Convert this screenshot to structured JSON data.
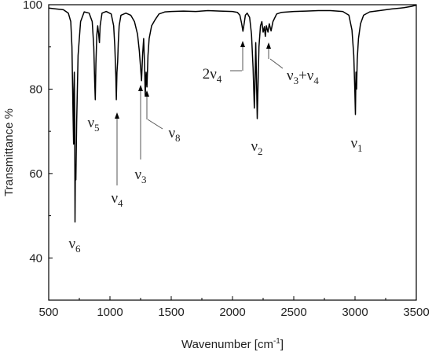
{
  "chart_data": {
    "type": "line",
    "title": "",
    "xlabel": "Wavenumber [cm",
    "xlabel_sup": "-1",
    "xlabel_end": "]",
    "ylabel": "Transmittance %",
    "xlim": [
      500,
      3500
    ],
    "ylim": [
      30,
      100
    ],
    "x_ticks": [
      500,
      1000,
      1500,
      2000,
      2500,
      3000,
      3500
    ],
    "y_ticks": [
      40,
      60,
      80,
      100
    ],
    "grid": false,
    "legend": "none",
    "line_color": "#000000",
    "series": [
      {
        "points": [
          [
            500,
            99.2
          ],
          [
            560,
            99.0
          ],
          [
            620,
            98.8
          ],
          [
            660,
            98.0
          ],
          [
            680,
            96.0
          ],
          [
            690,
            90.0
          ],
          [
            698,
            75.0
          ],
          [
            703,
            67.0
          ],
          [
            706,
            80.0
          ],
          [
            709,
            84.0
          ],
          [
            712,
            74.0
          ],
          [
            715,
            48.5
          ],
          [
            718,
            62.0
          ],
          [
            722,
            58.5
          ],
          [
            728,
            72.0
          ],
          [
            740,
            88.0
          ],
          [
            760,
            96.0
          ],
          [
            790,
            98.3
          ],
          [
            830,
            98.0
          ],
          [
            855,
            96.0
          ],
          [
            868,
            90.0
          ],
          [
            875,
            82.0
          ],
          [
            880,
            77.5
          ],
          [
            885,
            86.0
          ],
          [
            893,
            93.0
          ],
          [
            900,
            95.0
          ],
          [
            908,
            93.0
          ],
          [
            914,
            91.0
          ],
          [
            920,
            95.0
          ],
          [
            935,
            98.0
          ],
          [
            970,
            98.4
          ],
          [
            1010,
            97.8
          ],
          [
            1030,
            95.0
          ],
          [
            1040,
            90.0
          ],
          [
            1048,
            83.0
          ],
          [
            1052,
            77.5
          ],
          [
            1057,
            84.0
          ],
          [
            1063,
            86.5
          ],
          [
            1068,
            91.0
          ],
          [
            1075,
            95.0
          ],
          [
            1090,
            97.5
          ],
          [
            1130,
            98.0
          ],
          [
            1170,
            97.5
          ],
          [
            1200,
            96.0
          ],
          [
            1225,
            93.0
          ],
          [
            1240,
            89.0
          ],
          [
            1250,
            85.0
          ],
          [
            1258,
            82.0
          ],
          [
            1266,
            88.0
          ],
          [
            1275,
            92.0
          ],
          [
            1282,
            86.0
          ],
          [
            1288,
            78.5
          ],
          [
            1295,
            84.0
          ],
          [
            1302,
            80.5
          ],
          [
            1310,
            88.0
          ],
          [
            1320,
            92.0
          ],
          [
            1340,
            95.0
          ],
          [
            1370,
            96.5
          ],
          [
            1400,
            97.8
          ],
          [
            1450,
            98.3
          ],
          [
            1500,
            98.4
          ],
          [
            1600,
            98.5
          ],
          [
            1700,
            98.4
          ],
          [
            1800,
            98.6
          ],
          [
            1900,
            98.5
          ],
          [
            2000,
            98.4
          ],
          [
            2040,
            98.2
          ],
          [
            2060,
            97.5
          ],
          [
            2075,
            95.5
          ],
          [
            2085,
            93.7
          ],
          [
            2095,
            95.5
          ],
          [
            2105,
            97.5
          ],
          [
            2120,
            98.0
          ],
          [
            2140,
            97.0
          ],
          [
            2155,
            93.0
          ],
          [
            2168,
            85.0
          ],
          [
            2178,
            75.5
          ],
          [
            2183,
            80.0
          ],
          [
            2190,
            91.0
          ],
          [
            2196,
            82.0
          ],
          [
            2202,
            73.0
          ],
          [
            2208,
            80.0
          ],
          [
            2216,
            90.0
          ],
          [
            2228,
            95.0
          ],
          [
            2240,
            96.0
          ],
          [
            2250,
            93.5
          ],
          [
            2260,
            94.8
          ],
          [
            2268,
            92.5
          ],
          [
            2276,
            95.0
          ],
          [
            2290,
            93.5
          ],
          [
            2300,
            95.5
          ],
          [
            2315,
            93.8
          ],
          [
            2330,
            96.0
          ],
          [
            2360,
            97.8
          ],
          [
            2400,
            98.2
          ],
          [
            2500,
            98.4
          ],
          [
            2600,
            98.5
          ],
          [
            2700,
            98.6
          ],
          [
            2800,
            98.6
          ],
          [
            2900,
            98.4
          ],
          [
            2950,
            97.5
          ],
          [
            2975,
            94.0
          ],
          [
            2990,
            88.0
          ],
          [
            2998,
            80.0
          ],
          [
            3003,
            74.0
          ],
          [
            3008,
            84.0
          ],
          [
            3013,
            80.0
          ],
          [
            3018,
            87.0
          ],
          [
            3028,
            92.0
          ],
          [
            3045,
            95.5
          ],
          [
            3070,
            97.5
          ],
          [
            3120,
            98.3
          ],
          [
            3200,
            98.6
          ],
          [
            3300,
            99.0
          ],
          [
            3400,
            99.3
          ],
          [
            3460,
            99.6
          ],
          [
            3500,
            99.9
          ]
        ]
      }
    ],
    "annotations": [
      {
        "id": "v6",
        "base": "ν",
        "sub": "6",
        "x": 716,
        "y": 48.5,
        "has_arrow": false
      },
      {
        "id": "v5",
        "base": "ν",
        "sub": "5",
        "x": 878,
        "y": 77.5,
        "has_arrow": false
      },
      {
        "id": "v4",
        "base": "ν",
        "sub": "4",
        "x": 1052,
        "y": 77.5,
        "has_arrow": true
      },
      {
        "id": "v3",
        "base": "ν",
        "sub": "3",
        "x": 1256,
        "y": 82.0,
        "has_arrow": true
      },
      {
        "id": "v8",
        "base": "ν",
        "sub": "8",
        "x": 1288,
        "y": 78.5,
        "has_arrow": true
      },
      {
        "id": "v2",
        "base": "ν",
        "sub": "2",
        "x": 2192,
        "y": 73.0,
        "has_arrow": false
      },
      {
        "id": "2v4",
        "pre": "2ν",
        "sub": "4",
        "x": 2085,
        "y": 93.7,
        "has_arrow": true
      },
      {
        "id": "v3v4",
        "base": "ν",
        "sub": "3",
        "mid": "+ν",
        "sub2": "4",
        "x": 2268,
        "y": 92.5,
        "has_arrow": true
      },
      {
        "id": "v1",
        "base": "ν",
        "sub": "1",
        "x": 3003,
        "y": 74.0,
        "has_arrow": false
      }
    ]
  }
}
